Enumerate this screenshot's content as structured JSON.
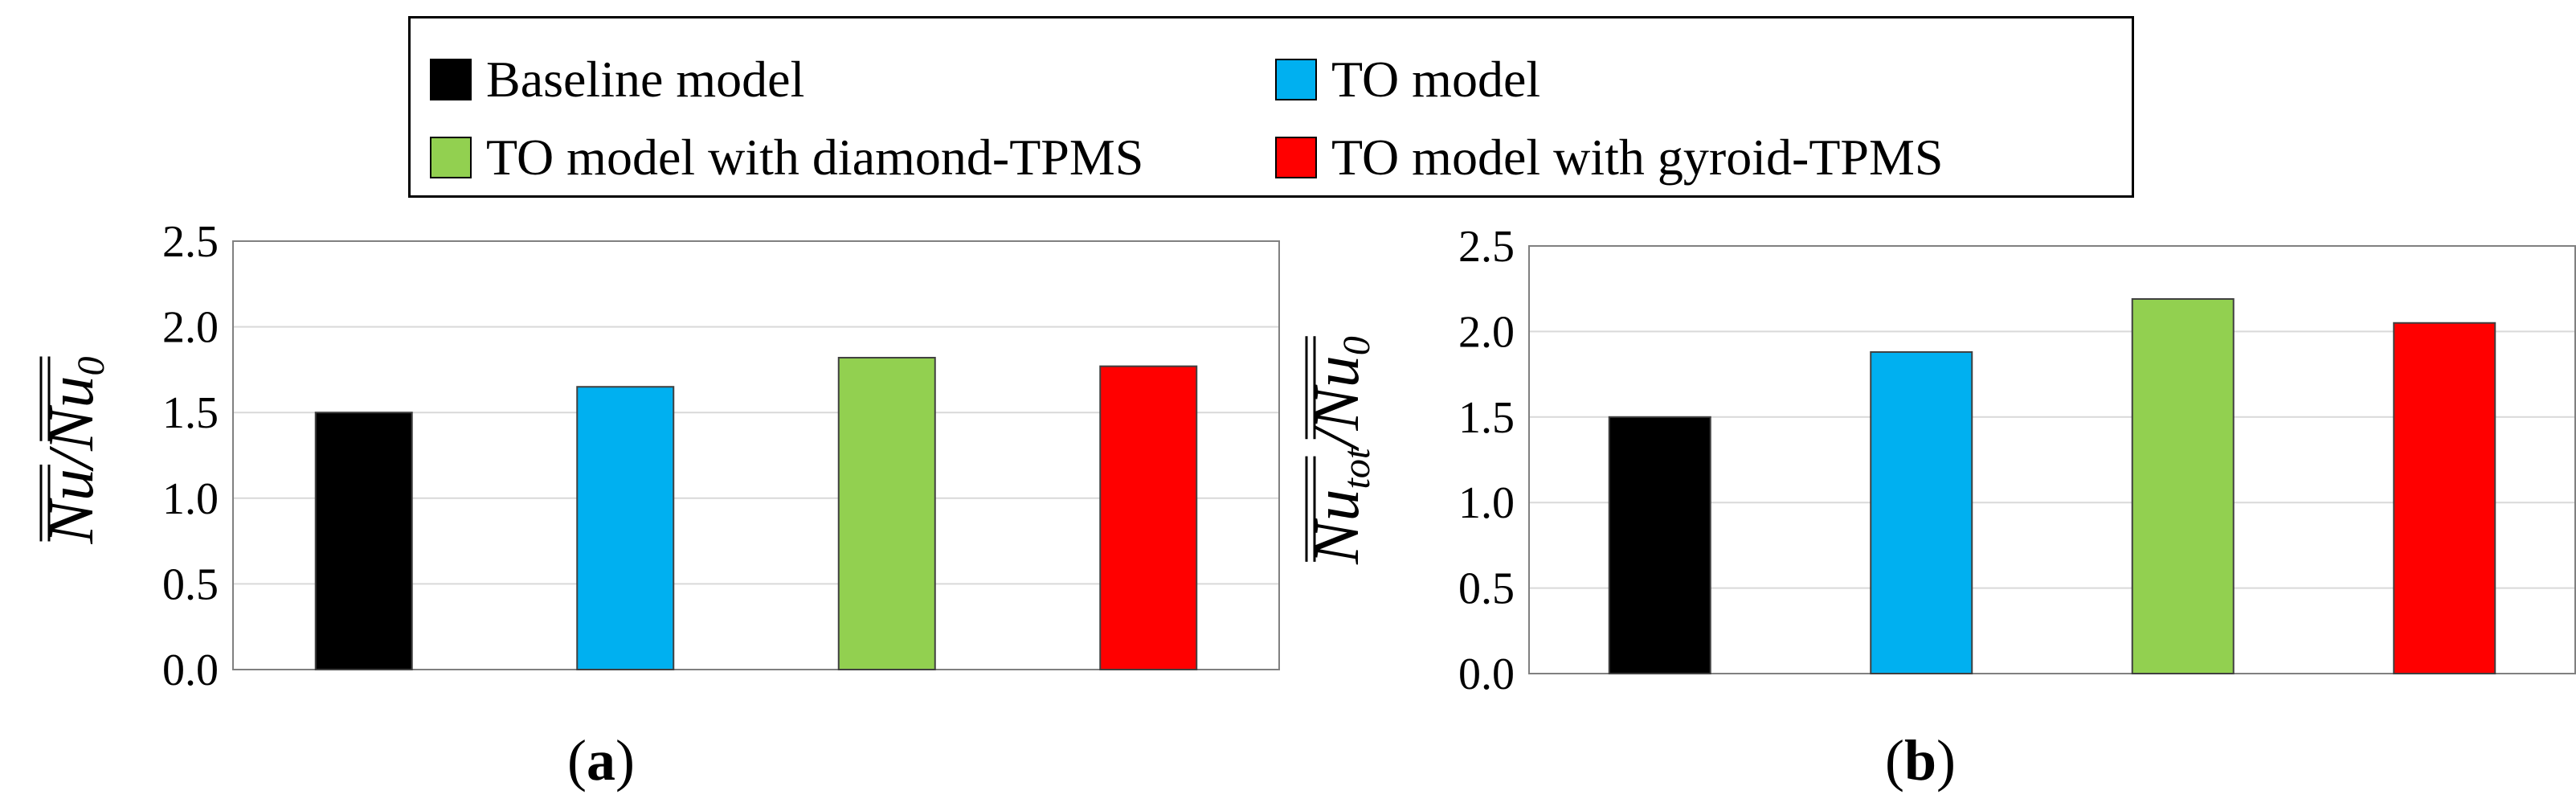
{
  "legend": {
    "items": [
      {
        "label": "Baseline model",
        "color": "#000000"
      },
      {
        "label": "TO model",
        "color": "#00b0f0"
      },
      {
        "label": "TO model with diamond-TPMS",
        "color": "#92d050"
      },
      {
        "label": "TO model with gyroid-TPMS",
        "color": "#ff0000"
      }
    ]
  },
  "chart_data": [
    {
      "type": "bar",
      "panel_label": "(a)",
      "categories": [
        "Baseline model",
        "TO model",
        "TO model with diamond-TPMS",
        "TO model with gyroid-TPMS"
      ],
      "values": [
        1.5,
        1.65,
        1.82,
        1.77
      ],
      "colors": [
        "#000000",
        "#00b0f0",
        "#92d050",
        "#ff0000"
      ],
      "ylabel": {
        "num": "Nu",
        "num_sub": "",
        "den": "Nu",
        "den_sub": "0"
      },
      "ylim": [
        0.0,
        2.5
      ],
      "yticks": [
        "0.0",
        "0.5",
        "1.0",
        "1.5",
        "2.0",
        "2.5"
      ],
      "grid": true
    },
    {
      "type": "bar",
      "panel_label": "(b)",
      "categories": [
        "Baseline model",
        "TO model",
        "TO model with diamond-TPMS",
        "TO model with gyroid-TPMS"
      ],
      "values": [
        1.5,
        1.88,
        2.19,
        2.05
      ],
      "colors": [
        "#000000",
        "#00b0f0",
        "#92d050",
        "#ff0000"
      ],
      "ylabel": {
        "num": "Nu",
        "num_sub": "tot",
        "den": "Nu",
        "den_sub": "0"
      },
      "ylim": [
        0.0,
        2.5
      ],
      "yticks": [
        "0.0",
        "0.5",
        "1.0",
        "1.5",
        "2.0",
        "2.5"
      ],
      "grid": true
    }
  ]
}
